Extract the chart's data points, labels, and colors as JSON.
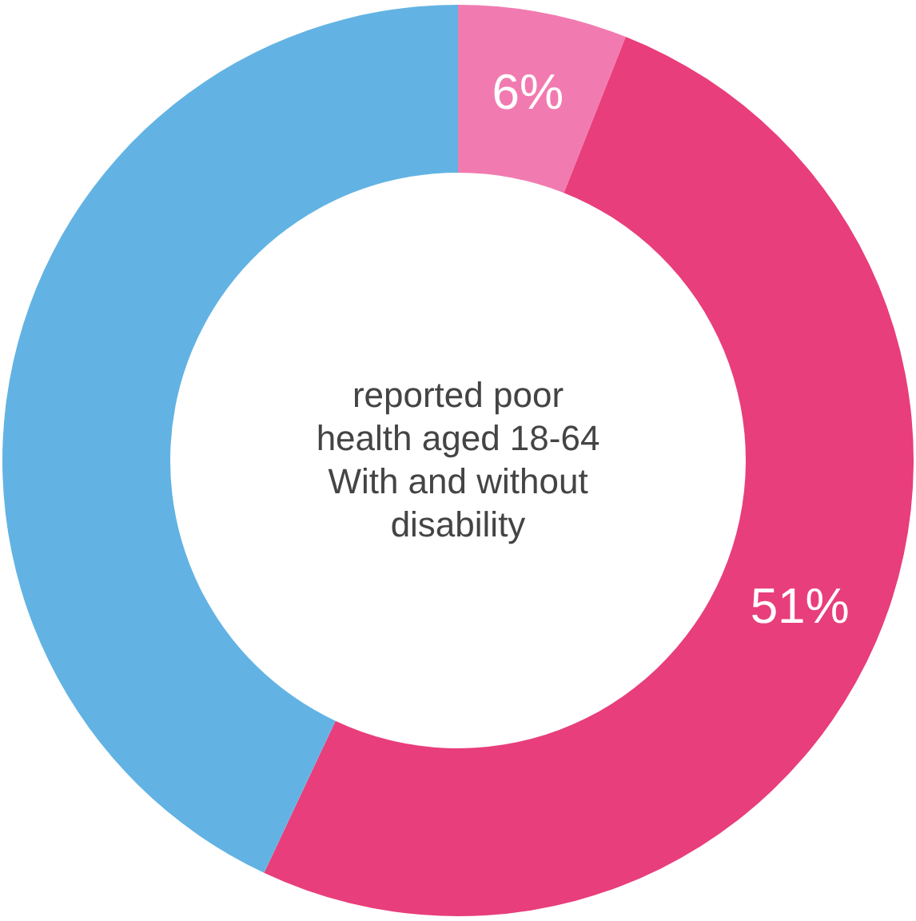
{
  "chart_data": {
    "type": "donut",
    "categories": [
      null,
      null,
      null
    ],
    "values": [
      6,
      51,
      43
    ],
    "colors": [
      "#f17bb0",
      "#e83e7b",
      "#62b3e3"
    ],
    "value_labels": [
      "6%",
      "51%",
      null
    ],
    "annotations": [
      "reported poor",
      "health aged 18-64",
      "With and without",
      "disability"
    ]
  }
}
